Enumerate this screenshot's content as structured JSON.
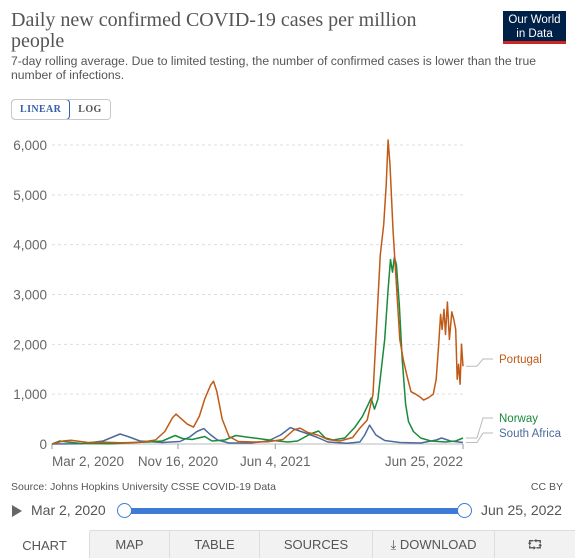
{
  "header": {
    "title": "Daily new confirmed COVID-19 cases per million people",
    "subtitle": "7-day rolling average. Due to limited testing, the number of confirmed cases is lower than the true number of infections.",
    "logo_line1": "Our World",
    "logo_line2": "in Data"
  },
  "scale_toggle": {
    "linear": "LINEAR",
    "log": "LOG",
    "active": "LINEAR"
  },
  "chart_data": {
    "type": "line",
    "title": "Daily new confirmed COVID-19 cases per million people",
    "ylim": [
      0,
      6000
    ],
    "y_ticks": [
      "0",
      "1,000",
      "2,000",
      "3,000",
      "4,000",
      "5,000",
      "6,000"
    ],
    "y_tick_values": [
      0,
      1000,
      2000,
      3000,
      4000,
      5000,
      6000
    ],
    "x_ticks": [
      "Mar 2, 2020",
      "Nov 16, 2020",
      "Jun 4, 2021",
      "Jun 25, 2022"
    ],
    "x_tick_dates": [
      "2020-03-02",
      "2020-11-16",
      "2021-06-04",
      "2022-06-25"
    ],
    "xlim": [
      "2020-03-02",
      "2022-06-25"
    ],
    "grid": "horizontal dotted",
    "legend": "right, inline labels",
    "series": [
      {
        "name": "Portugal",
        "color": "#c15a17",
        "points": [
          [
            "2020-03-02",
            0
          ],
          [
            "2020-03-25",
            60
          ],
          [
            "2020-04-10",
            75
          ],
          [
            "2020-05-15",
            30
          ],
          [
            "2020-06-20",
            35
          ],
          [
            "2020-07-20",
            25
          ],
          [
            "2020-09-01",
            35
          ],
          [
            "2020-10-01",
            80
          ],
          [
            "2020-10-20",
            250
          ],
          [
            "2020-11-05",
            530
          ],
          [
            "2020-11-12",
            600
          ],
          [
            "2020-11-20",
            530
          ],
          [
            "2020-12-05",
            400
          ],
          [
            "2020-12-18",
            340
          ],
          [
            "2020-12-30",
            560
          ],
          [
            "2021-01-10",
            900
          ],
          [
            "2021-01-22",
            1180
          ],
          [
            "2021-01-28",
            1260
          ],
          [
            "2021-02-04",
            1050
          ],
          [
            "2021-02-15",
            500
          ],
          [
            "2021-03-01",
            150
          ],
          [
            "2021-03-20",
            50
          ],
          [
            "2021-04-20",
            40
          ],
          [
            "2021-05-20",
            45
          ],
          [
            "2021-06-20",
            90
          ],
          [
            "2021-07-12",
            280
          ],
          [
            "2021-07-25",
            320
          ],
          [
            "2021-08-10",
            230
          ],
          [
            "2021-08-30",
            180
          ],
          [
            "2021-09-20",
            90
          ],
          [
            "2021-10-15",
            60
          ],
          [
            "2021-11-10",
            130
          ],
          [
            "2021-11-25",
            320
          ],
          [
            "2021-12-10",
            480
          ],
          [
            "2021-12-22",
            1000
          ],
          [
            "2021-12-30",
            2500
          ],
          [
            "2022-01-06",
            3800
          ],
          [
            "2022-01-13",
            4400
          ],
          [
            "2022-01-18",
            5200
          ],
          [
            "2022-01-22",
            6100
          ],
          [
            "2022-01-26",
            5600
          ],
          [
            "2022-02-01",
            4300
          ],
          [
            "2022-02-08",
            3200
          ],
          [
            "2022-02-15",
            2100
          ],
          [
            "2022-02-22",
            1700
          ],
          [
            "2022-03-01",
            1400
          ],
          [
            "2022-03-10",
            1050
          ],
          [
            "2022-03-20",
            1000
          ],
          [
            "2022-03-28",
            950
          ],
          [
            "2022-04-05",
            880
          ],
          [
            "2022-04-15",
            930
          ],
          [
            "2022-04-25",
            1000
          ],
          [
            "2022-05-01",
            1300
          ],
          [
            "2022-05-06",
            2000
          ],
          [
            "2022-05-10",
            2600
          ],
          [
            "2022-05-13",
            2300
          ],
          [
            "2022-05-17",
            2700
          ],
          [
            "2022-05-20",
            2200
          ],
          [
            "2022-05-24",
            2850
          ],
          [
            "2022-05-28",
            2100
          ],
          [
            "2022-06-02",
            2650
          ],
          [
            "2022-06-06",
            2500
          ],
          [
            "2022-06-10",
            2300
          ],
          [
            "2022-06-13",
            1300
          ],
          [
            "2022-06-16",
            1600
          ],
          [
            "2022-06-19",
            1200
          ],
          [
            "2022-06-22",
            2000
          ],
          [
            "2022-06-25",
            1560
          ]
        ]
      },
      {
        "name": "Norway",
        "color": "#1a8a3c",
        "points": [
          [
            "2020-03-02",
            0
          ],
          [
            "2020-03-18",
            60
          ],
          [
            "2020-03-30",
            45
          ],
          [
            "2020-05-01",
            10
          ],
          [
            "2020-07-01",
            5
          ],
          [
            "2020-08-20",
            30
          ],
          [
            "2020-09-15",
            40
          ],
          [
            "2020-10-15",
            60
          ],
          [
            "2020-11-10",
            170
          ],
          [
            "2020-11-25",
            110
          ],
          [
            "2020-12-15",
            90
          ],
          [
            "2021-01-10",
            150
          ],
          [
            "2021-01-25",
            60
          ],
          [
            "2021-02-20",
            80
          ],
          [
            "2021-03-15",
            170
          ],
          [
            "2021-04-05",
            140
          ],
          [
            "2021-04-30",
            110
          ],
          [
            "2021-05-30",
            70
          ],
          [
            "2021-06-30",
            40
          ],
          [
            "2021-07-20",
            60
          ],
          [
            "2021-08-15",
            200
          ],
          [
            "2021-09-01",
            260
          ],
          [
            "2021-09-15",
            120
          ],
          [
            "2021-10-01",
            80
          ],
          [
            "2021-10-25",
            120
          ],
          [
            "2021-11-15",
            340
          ],
          [
            "2021-11-30",
            550
          ],
          [
            "2021-12-10",
            750
          ],
          [
            "2021-12-18",
            920
          ],
          [
            "2021-12-25",
            700
          ],
          [
            "2022-01-01",
            900
          ],
          [
            "2022-01-08",
            1500
          ],
          [
            "2022-01-15",
            2100
          ],
          [
            "2022-01-22",
            3100
          ],
          [
            "2022-01-27",
            3700
          ],
          [
            "2022-01-31",
            3450
          ],
          [
            "2022-02-04",
            3750
          ],
          [
            "2022-02-08",
            3600
          ],
          [
            "2022-02-14",
            2800
          ],
          [
            "2022-02-20",
            1700
          ],
          [
            "2022-02-27",
            800
          ],
          [
            "2022-03-05",
            450
          ],
          [
            "2022-03-15",
            250
          ],
          [
            "2022-03-30",
            120
          ],
          [
            "2022-04-20",
            60
          ],
          [
            "2022-05-20",
            40
          ],
          [
            "2022-06-10",
            60
          ],
          [
            "2022-06-25",
            120
          ]
        ]
      },
      {
        "name": "South Africa",
        "color": "#4c6a9c",
        "points": [
          [
            "2020-03-02",
            0
          ],
          [
            "2020-05-01",
            5
          ],
          [
            "2020-06-15",
            60
          ],
          [
            "2020-07-10",
            160
          ],
          [
            "2020-07-20",
            200
          ],
          [
            "2020-08-05",
            150
          ],
          [
            "2020-08-30",
            60
          ],
          [
            "2020-10-15",
            30
          ],
          [
            "2020-11-20",
            50
          ],
          [
            "2020-12-10",
            140
          ],
          [
            "2020-12-25",
            250
          ],
          [
            "2021-01-08",
            310
          ],
          [
            "2021-01-20",
            200
          ],
          [
            "2021-02-05",
            80
          ],
          [
            "2021-03-01",
            20
          ],
          [
            "2021-04-15",
            20
          ],
          [
            "2021-05-20",
            60
          ],
          [
            "2021-06-15",
            180
          ],
          [
            "2021-07-05",
            330
          ],
          [
            "2021-07-18",
            280
          ],
          [
            "2021-08-05",
            220
          ],
          [
            "2021-08-30",
            130
          ],
          [
            "2021-09-20",
            40
          ],
          [
            "2021-10-30",
            15
          ],
          [
            "2021-11-25",
            40
          ],
          [
            "2021-12-05",
            180
          ],
          [
            "2021-12-15",
            380
          ],
          [
            "2021-12-28",
            180
          ],
          [
            "2022-01-15",
            70
          ],
          [
            "2022-02-15",
            30
          ],
          [
            "2022-03-30",
            20
          ],
          [
            "2022-05-01",
            80
          ],
          [
            "2022-05-12",
            120
          ],
          [
            "2022-05-30",
            60
          ],
          [
            "2022-06-25",
            30
          ]
        ]
      }
    ]
  },
  "footer": {
    "source": "Source: Johns Hopkins University CSSE COVID-19 Data",
    "license": "CC BY"
  },
  "timeline": {
    "start": "Mar 2, 2020",
    "end": "Jun 25, 2022"
  },
  "tabs": [
    {
      "label": "CHART",
      "active": true
    },
    {
      "label": "MAP",
      "active": false
    },
    {
      "label": "TABLE",
      "active": false
    },
    {
      "label": "SOURCES",
      "active": false
    },
    {
      "label": "DOWNLOAD",
      "active": false
    }
  ]
}
